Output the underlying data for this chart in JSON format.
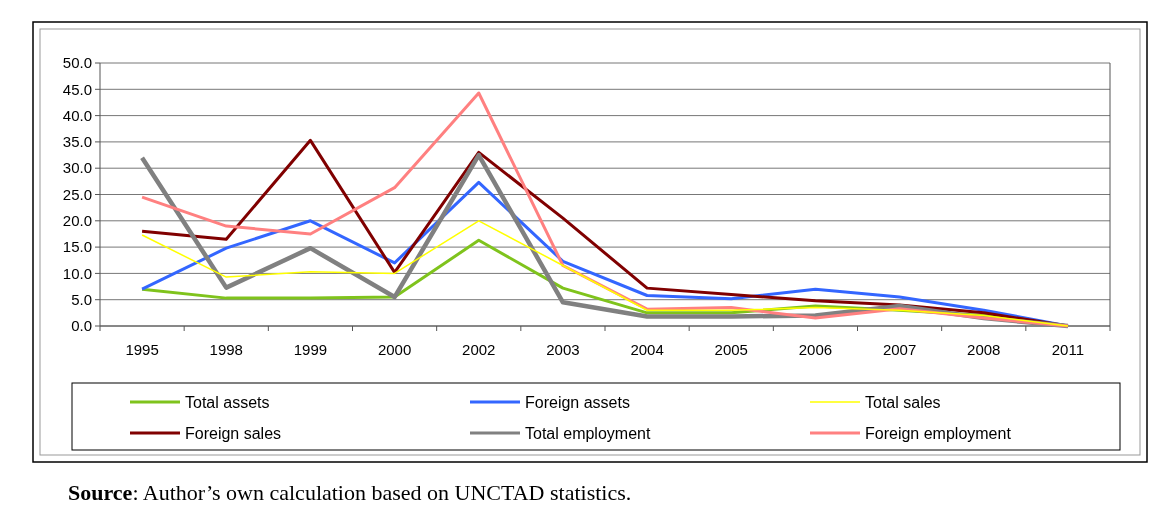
{
  "chart_data": {
    "type": "line",
    "categories": [
      "1995",
      "1998",
      "1999",
      "2000",
      "2002",
      "2003",
      "2004",
      "2005",
      "2006",
      "2007",
      "2008",
      "2011"
    ],
    "series": [
      {
        "name": "Total assets",
        "color": "#7fc31c",
        "values": [
          7.0,
          5.3,
          5.3,
          5.5,
          16.3,
          7.2,
          2.5,
          2.5,
          3.8,
          3.0,
          2.0,
          0
        ]
      },
      {
        "name": "Foreign assets",
        "color": "#3366ff",
        "values": [
          7.0,
          14.8,
          20.0,
          12.0,
          27.3,
          12.3,
          5.8,
          5.2,
          7.0,
          5.5,
          3.0,
          0
        ]
      },
      {
        "name": "Total sales",
        "color": "#ffff00",
        "values": [
          17.3,
          9.3,
          10.3,
          10.0,
          20.0,
          11.5,
          3.0,
          3.0,
          3.5,
          3.0,
          2.0,
          0
        ]
      },
      {
        "name": "Foreign sales",
        "color": "#800000",
        "values": [
          18.0,
          16.5,
          35.3,
          10.2,
          33.0,
          20.5,
          7.2,
          6.0,
          4.8,
          4.0,
          2.5,
          0
        ]
      },
      {
        "name": "Total employment",
        "color": "#808080",
        "values": [
          32.0,
          7.3,
          14.8,
          5.5,
          32.5,
          4.5,
          1.8,
          1.8,
          2.0,
          3.8,
          1.5,
          0
        ]
      },
      {
        "name": "Foreign employment",
        "color": "#ff8080",
        "values": [
          24.5,
          19.0,
          17.5,
          26.3,
          44.3,
          11.5,
          3.2,
          3.5,
          1.5,
          3.3,
          1.5,
          0
        ]
      }
    ],
    "ylim": [
      0,
      50
    ],
    "yticks": [
      {
        "value": 0,
        "label": "0.0"
      },
      {
        "value": 5,
        "label": "5.0"
      },
      {
        "value": 10,
        "label": "10.0"
      },
      {
        "value": 15,
        "label": "15.0"
      },
      {
        "value": 20,
        "label": "20.0"
      },
      {
        "value": 25,
        "label": "25.0"
      },
      {
        "value": 30,
        "label": "30.0"
      },
      {
        "value": 35,
        "label": "35.0"
      },
      {
        "value": 40,
        "label": "40.0"
      },
      {
        "value": 45,
        "label": "45.0"
      },
      {
        "value": 50,
        "label": "50.0"
      }
    ],
    "grid": "y",
    "legend": "bottom",
    "marker": "none",
    "line_style": "solid",
    "annotations": [
      "Source: Author’s own calculation based on UNCTAD statistics."
    ]
  }
}
